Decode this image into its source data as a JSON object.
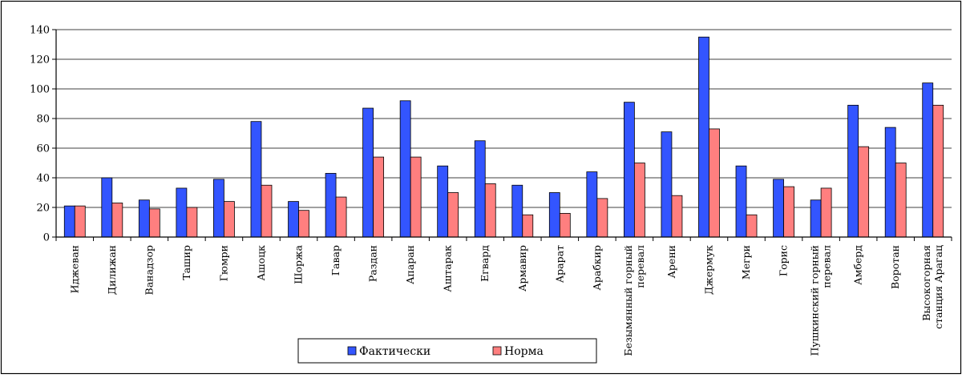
{
  "chart_data": {
    "type": "bar",
    "title": "",
    "xlabel": "",
    "ylabel": "",
    "ylim": [
      0,
      140
    ],
    "yticks": [
      0,
      20,
      40,
      60,
      80,
      100,
      120,
      140
    ],
    "grid": true,
    "legend_position": "bottom-center",
    "categories": [
      [
        "Иджеван"
      ],
      [
        "Дилижан"
      ],
      [
        "Ванадзор"
      ],
      [
        "Ташир"
      ],
      [
        "Гюмри"
      ],
      [
        "Ашоцк"
      ],
      [
        "Шоржа"
      ],
      [
        "Гавар"
      ],
      [
        "Раздан"
      ],
      [
        "Апаран"
      ],
      [
        "Аштарак"
      ],
      [
        "Егвард"
      ],
      [
        "Армавир"
      ],
      [
        "Арарат"
      ],
      [
        "Арабкир"
      ],
      [
        "Безымянный горный",
        "перевал"
      ],
      [
        "Арени"
      ],
      [
        "Джермук"
      ],
      [
        "Мегри"
      ],
      [
        "Горис"
      ],
      [
        "Пушкинский горный",
        "перевал"
      ],
      [
        "Амберд"
      ],
      [
        "Воротан"
      ],
      [
        "Высокогорная",
        "станция Арагац"
      ]
    ],
    "series": [
      {
        "name": "Фактически",
        "color": "#3355ff",
        "values": [
          21,
          40,
          25,
          33,
          39,
          78,
          24,
          43,
          87,
          92,
          48,
          65,
          35,
          30,
          44,
          91,
          71,
          135,
          48,
          39,
          25,
          89,
          74,
          104
        ]
      },
      {
        "name": "Норма",
        "color": "#ff7f7f",
        "values": [
          21,
          23,
          19,
          20,
          24,
          35,
          18,
          27,
          54,
          54,
          30,
          36,
          15,
          16,
          26,
          50,
          28,
          73,
          15,
          34,
          33,
          61,
          50,
          89
        ]
      }
    ]
  }
}
